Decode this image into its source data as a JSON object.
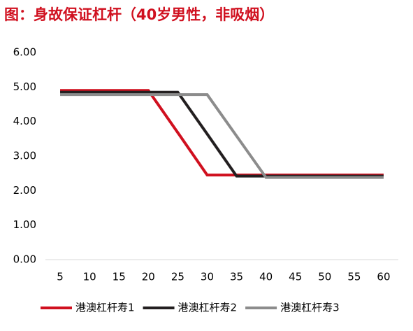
{
  "chart_data": {
    "type": "line",
    "title": "图：身故保证杠杆（40岁男性，非吸烟）",
    "categories": [
      5,
      10,
      15,
      20,
      25,
      30,
      35,
      40,
      45,
      50,
      55,
      60
    ],
    "series": [
      {
        "name": "港澳杠杆寿1",
        "color": "#d0101f",
        "values": [
          4.9,
          4.9,
          4.9,
          4.9,
          3.68,
          2.45,
          2.45,
          2.45,
          2.45,
          2.45,
          2.45,
          2.45
        ]
      },
      {
        "name": "港澳杠杆寿2",
        "color": "#231f20",
        "values": [
          4.85,
          4.85,
          4.85,
          4.85,
          4.85,
          3.64,
          2.42,
          2.42,
          2.42,
          2.42,
          2.42,
          2.42
        ]
      },
      {
        "name": "港澳杠杆寿3",
        "color": "#8c8c8c",
        "values": [
          4.78,
          4.78,
          4.78,
          4.78,
          4.78,
          4.78,
          3.58,
          2.38,
          2.38,
          2.38,
          2.38,
          2.38
        ]
      }
    ],
    "ylim": [
      0,
      6
    ],
    "yticks": [
      {
        "value": 0,
        "label": "0.00"
      },
      {
        "value": 1,
        "label": "1.00"
      },
      {
        "value": 2,
        "label": "2.00"
      },
      {
        "value": 3,
        "label": "3.00"
      },
      {
        "value": 4,
        "label": "4.00"
      },
      {
        "value": 5,
        "label": "5.00"
      },
      {
        "value": 6,
        "label": "6.00"
      }
    ],
    "grid": false,
    "legend": "bottom"
  }
}
